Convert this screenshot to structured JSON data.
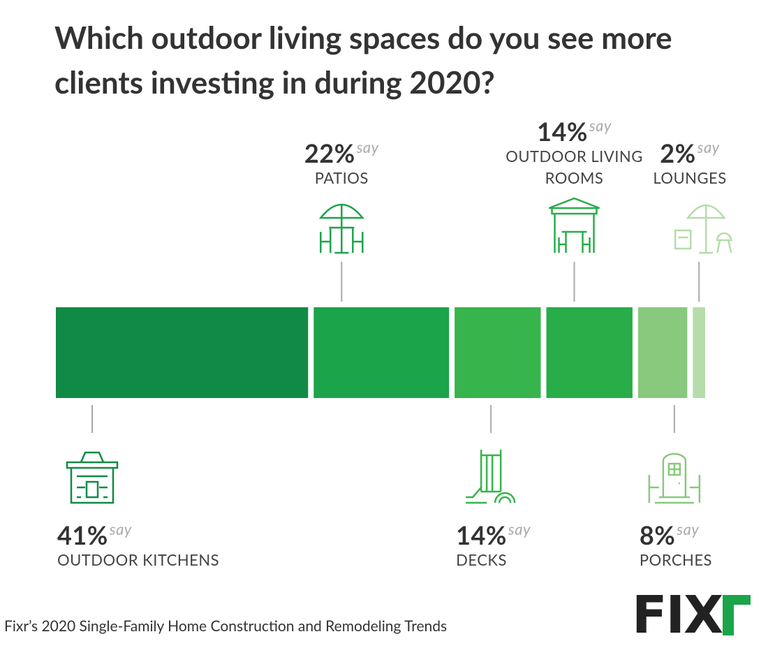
{
  "chart_data": {
    "type": "stacked-bar",
    "title": "Which outdoor living spaces do you see more clients investing in during 2020?",
    "categories": [
      "OUTDOOR KITCHENS",
      "PATIOS",
      "DECKS",
      "OUTDOOR LIVING ROOMS",
      "PORCHES",
      "LOUNGES"
    ],
    "values": [
      41,
      22,
      14,
      14,
      8,
      2
    ],
    "value_labels": [
      "41%",
      "22%",
      "14%",
      "14%",
      "8%",
      "2%"
    ],
    "value_suffix": "say",
    "colors": [
      "#118a45",
      "#1ba44a",
      "#37b44b",
      "#28ad48",
      "#88c97d",
      "#b5dca9"
    ],
    "source": "Fixr’s 2020 Single-Family Home Construction and Remodeling Trends",
    "logo": "FIX"
  }
}
